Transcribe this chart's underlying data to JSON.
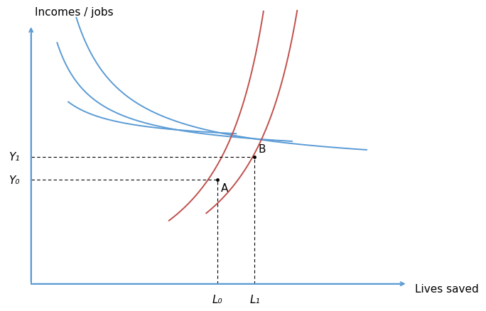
{
  "title": "",
  "xlabel": "Lives saved",
  "ylabel": "Incomes / jobs",
  "axis_color": "#5B9BD5",
  "blue_color": "#5B9BD5",
  "red_color": "#C0504D",
  "dashed_color": "#000000",
  "point_A": [
    0.5,
    0.41
  ],
  "point_B": [
    0.6,
    0.5
  ],
  "Y0_label": "Y₀",
  "Y1_label": "Y₁",
  "L0_label": "L₀",
  "L1_label": "L₁",
  "A_label": "A",
  "B_label": "B",
  "label_fontsize": 11,
  "point_fontsize": 11
}
